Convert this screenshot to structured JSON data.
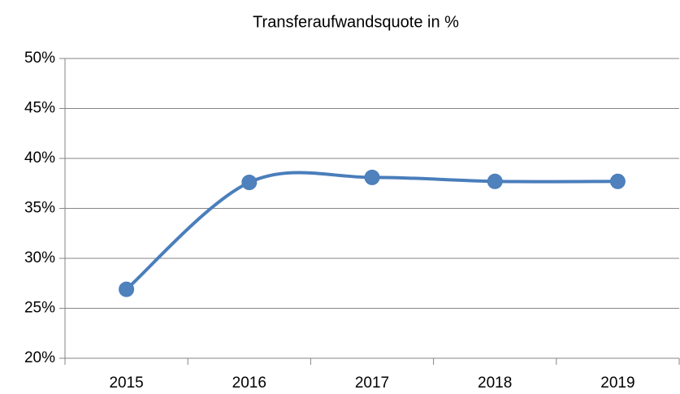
{
  "chart_data": {
    "type": "line",
    "title": "Transferaufwandsquote in %",
    "categories": [
      "2015",
      "2016",
      "2017",
      "2018",
      "2019"
    ],
    "series": [
      {
        "name": "Transferaufwandsquote",
        "color": "#4a7ebb",
        "values": [
          26.9,
          37.6,
          38.1,
          37.7,
          37.7
        ]
      }
    ],
    "ylim": [
      20,
      50
    ],
    "yticks": [
      {
        "value": 20,
        "label": "20%"
      },
      {
        "value": 25,
        "label": "25%"
      },
      {
        "value": 30,
        "label": "30%"
      },
      {
        "value": 35,
        "label": "35%"
      },
      {
        "value": 40,
        "label": "40%"
      },
      {
        "value": 45,
        "label": "45%"
      },
      {
        "value": 50,
        "label": "50%"
      }
    ],
    "grid": true,
    "smooth": true
  }
}
